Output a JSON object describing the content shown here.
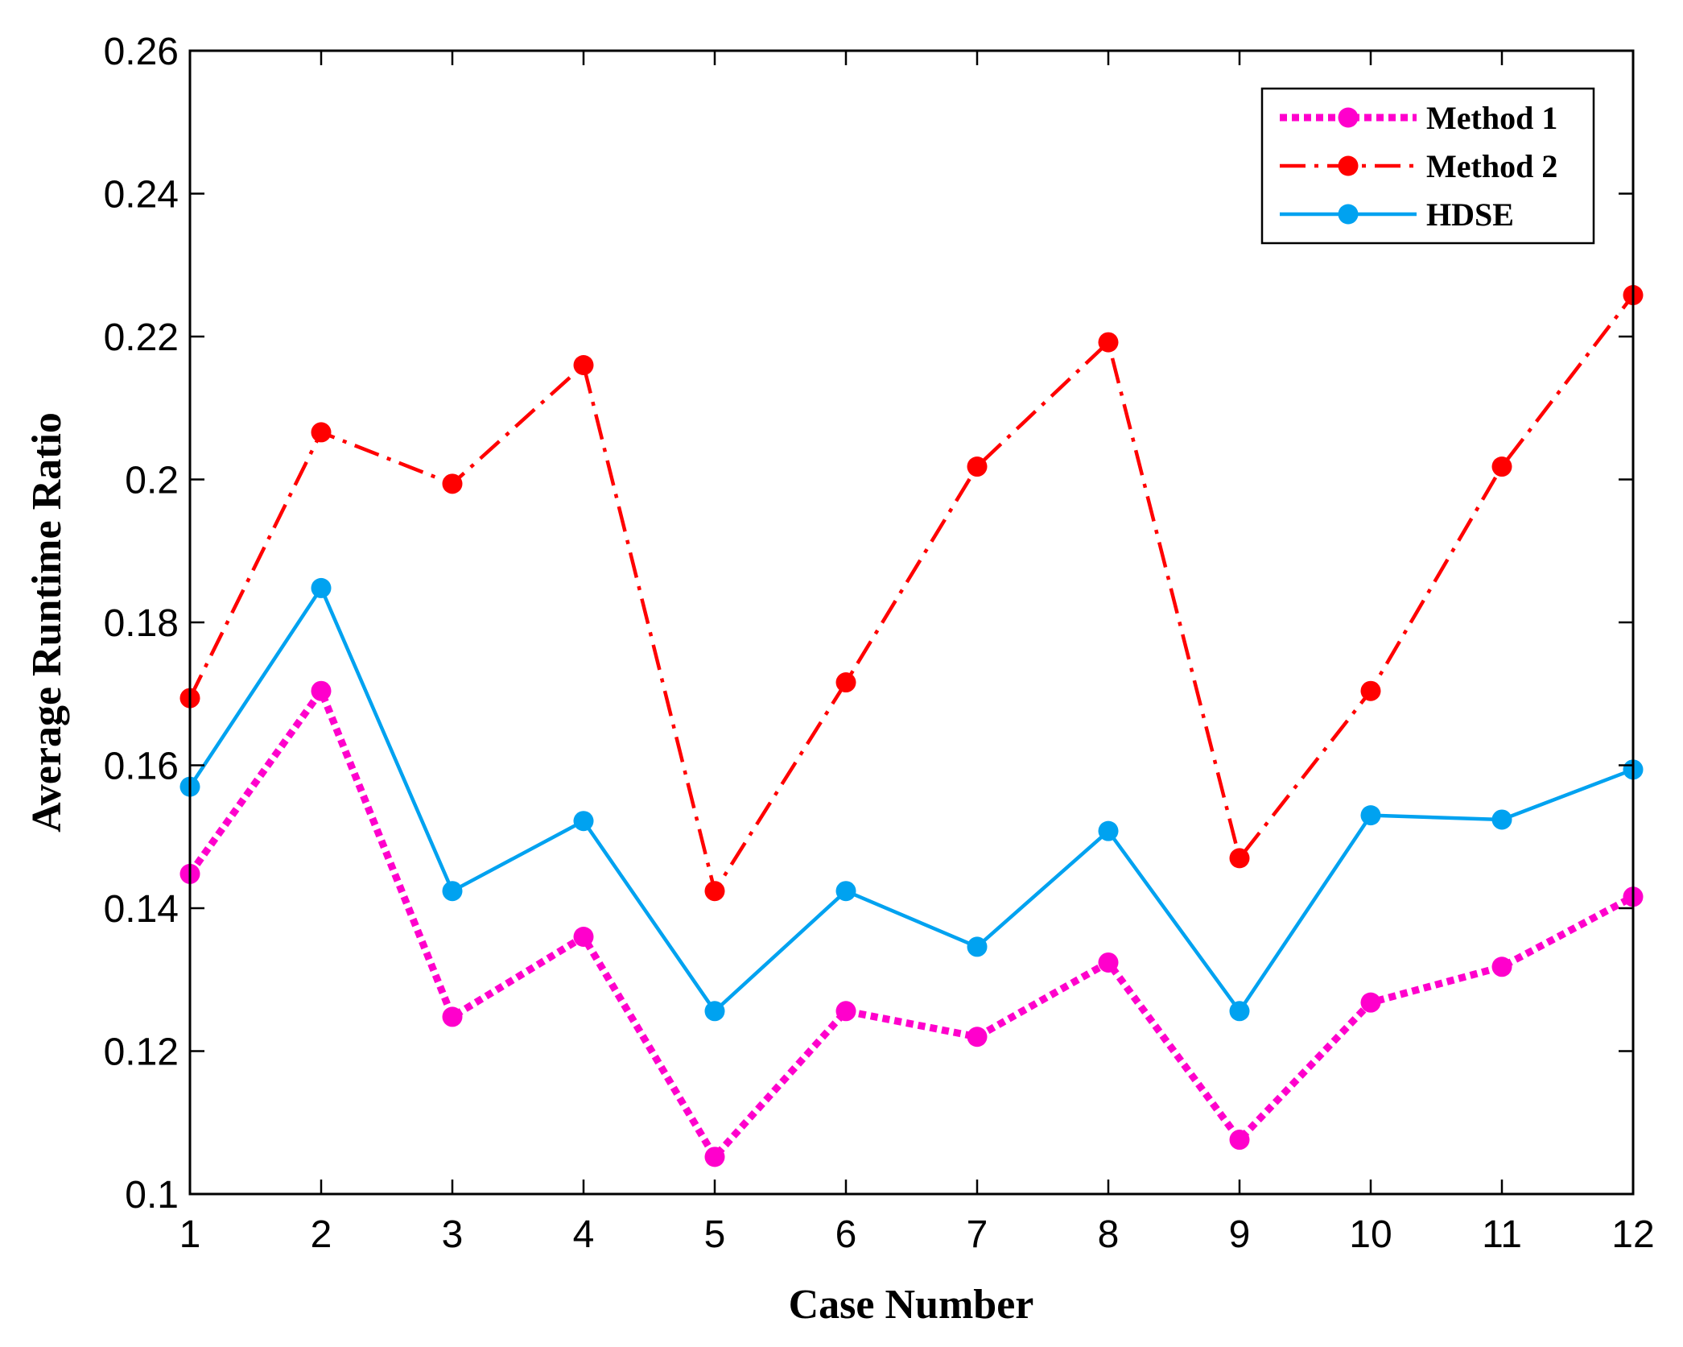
{
  "chart_data": {
    "type": "line",
    "title": "",
    "xlabel": "Case Number",
    "ylabel": "Average Runtime Ratio",
    "x": [
      1,
      2,
      3,
      4,
      5,
      6,
      7,
      8,
      9,
      10,
      11,
      12
    ],
    "x_tick_labels": [
      "1",
      "2",
      "3",
      "4",
      "5",
      "6",
      "7",
      "8",
      "9",
      "10",
      "11",
      "12"
    ],
    "xlim": [
      1,
      12
    ],
    "ylim": [
      0.1,
      0.26
    ],
    "y_ticks": [
      0.1,
      0.12,
      0.14,
      0.16,
      0.18,
      0.2,
      0.22,
      0.24,
      0.26
    ],
    "y_tick_labels": [
      "0.1",
      "0.12",
      "0.14",
      "0.16",
      "0.18",
      "0.2",
      "0.22",
      "0.24",
      "0.26"
    ],
    "grid": false,
    "legend_position": "top-right",
    "series": [
      {
        "name": "Method 1",
        "color": "#ff00cc",
        "line_style": "dotted",
        "values": [
          0.1448,
          0.1704,
          0.1248,
          0.136,
          0.1052,
          0.1256,
          0.122,
          0.1324,
          0.1076,
          0.1268,
          0.1318,
          0.1416
        ]
      },
      {
        "name": "Method 2",
        "color": "#ff0000",
        "line_style": "dash-dot",
        "values": [
          0.1694,
          0.2066,
          0.1994,
          0.216,
          0.1424,
          0.1716,
          0.2018,
          0.2192,
          0.147,
          0.1704,
          0.2018,
          0.2258
        ]
      },
      {
        "name": "HDSE",
        "color": "#00a2f0",
        "line_style": "solid",
        "values": [
          0.157,
          0.1848,
          0.1424,
          0.1522,
          0.1256,
          0.1424,
          0.1346,
          0.1508,
          0.1256,
          0.153,
          0.1524,
          0.1594
        ]
      }
    ]
  }
}
